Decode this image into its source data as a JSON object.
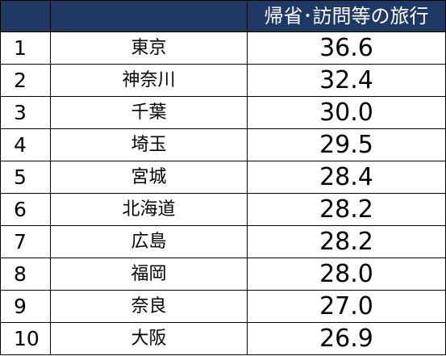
{
  "table": {
    "headers": [
      "",
      "",
      "帰省･訪問等の旅行"
    ],
    "rows": [
      {
        "rank": "1",
        "prefecture": "東京",
        "value": "36.6"
      },
      {
        "rank": "2",
        "prefecture": "神奈川",
        "value": "32.4"
      },
      {
        "rank": "3",
        "prefecture": "千葉",
        "value": "30.0"
      },
      {
        "rank": "4",
        "prefecture": "埼玉",
        "value": "29.5"
      },
      {
        "rank": "5",
        "prefecture": "宮城",
        "value": "28.4"
      },
      {
        "rank": "6",
        "prefecture": "北海道",
        "value": "28.2"
      },
      {
        "rank": "7",
        "prefecture": "広島",
        "value": "28.2"
      },
      {
        "rank": "8",
        "prefecture": "福岡",
        "value": "28.0"
      },
      {
        "rank": "9",
        "prefecture": "奈良",
        "value": "27.0"
      },
      {
        "rank": "10",
        "prefecture": "大阪",
        "value": "26.9"
      }
    ]
  },
  "colors": {
    "header_bg": "#1f3864",
    "header_text": "#ffffff",
    "border": "#000000"
  }
}
